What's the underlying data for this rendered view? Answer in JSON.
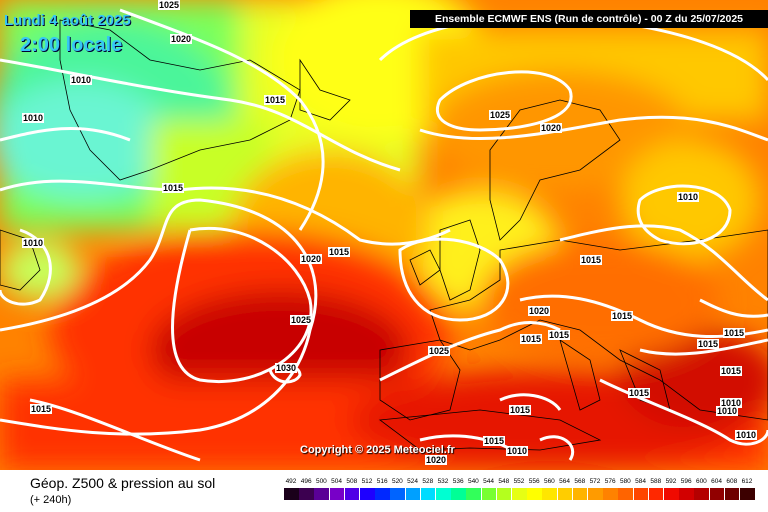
{
  "header": {
    "date": "Lundi 4 août 2025",
    "time": "2:00 locale",
    "run": "Ensemble ECMWF ENS  (Run de contrôle)  -  00 Z du 25/07/2025"
  },
  "copyright": "Copyright © 2025 Meteociel.fr",
  "footer": {
    "title": "Géop. Z500 & pression au sol",
    "subtitle": "(+ 240h)"
  },
  "isobar_labels": [
    {
      "text": "1025"
    },
    {
      "text": "1020"
    },
    {
      "text": "1010"
    },
    {
      "text": "1010"
    },
    {
      "text": "1015"
    },
    {
      "text": "1015"
    },
    {
      "text": "1010"
    },
    {
      "text": "1015"
    },
    {
      "text": "1020"
    },
    {
      "text": "1025"
    },
    {
      "text": "1030"
    },
    {
      "text": "1015"
    },
    {
      "text": "1025"
    },
    {
      "text": "1020"
    },
    {
      "text": "1010"
    },
    {
      "text": "1015"
    },
    {
      "text": "1020"
    },
    {
      "text": "1015"
    },
    {
      "text": "1015"
    },
    {
      "text": "1015"
    },
    {
      "text": "1015"
    },
    {
      "text": "1015"
    },
    {
      "text": "1015"
    },
    {
      "text": "1015"
    },
    {
      "text": "1010"
    },
    {
      "text": "1010"
    },
    {
      "text": "1010"
    },
    {
      "text": "1015"
    },
    {
      "text": "1010"
    },
    {
      "text": "1025"
    },
    {
      "text": "1020"
    },
    {
      "text": "1015"
    }
  ],
  "scale": {
    "values": [
      "492",
      "496",
      "500",
      "504",
      "508",
      "512",
      "516",
      "520",
      "524",
      "528",
      "532",
      "536",
      "540",
      "544",
      "548",
      "552",
      "556",
      "560",
      "564",
      "568",
      "572",
      "576",
      "580",
      "584",
      "588",
      "592",
      "596",
      "600",
      "604",
      "608",
      "612"
    ],
    "colors": [
      "#1a001a",
      "#3c0050",
      "#5a0096",
      "#7800c8",
      "#5000e6",
      "#1e00ff",
      "#0028ff",
      "#0064ff",
      "#00a0ff",
      "#00dcff",
      "#00ffd2",
      "#00ff96",
      "#32ff5a",
      "#78ff32",
      "#b4ff1e",
      "#e6ff14",
      "#ffff00",
      "#ffe600",
      "#ffcd00",
      "#ffb400",
      "#ff9b00",
      "#ff8200",
      "#ff6400",
      "#ff4600",
      "#ff2800",
      "#f00a00",
      "#d20000",
      "#b40000",
      "#910000",
      "#6e0000",
      "#3c0000"
    ]
  }
}
